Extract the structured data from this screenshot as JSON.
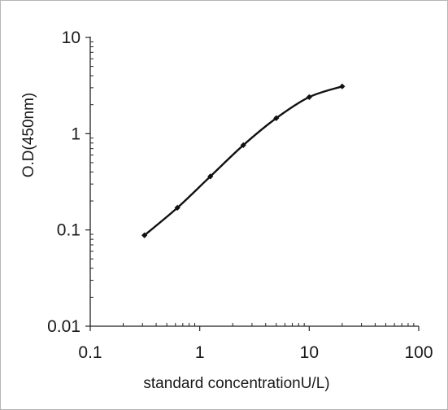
{
  "chart_data": {
    "type": "line",
    "xlabel": "standard concentrationU/L)",
    "ylabel": "O.D(450nm)",
    "x_scale": "log",
    "y_scale": "log",
    "xlim": [
      0.1,
      100
    ],
    "ylim": [
      0.01,
      10
    ],
    "x_ticks": [
      "0.1",
      "1",
      "10",
      "100"
    ],
    "y_ticks": [
      "0.01",
      "0.1",
      "1",
      "10"
    ],
    "grid": false,
    "legend": "none",
    "line_color": "#111111",
    "series": [
      {
        "x": [
          0.3125,
          0.625,
          1.25,
          2.5,
          5,
          10,
          20
        ],
        "y": [
          0.088,
          0.17,
          0.36,
          0.76,
          1.45,
          2.4,
          3.1
        ]
      }
    ]
  }
}
